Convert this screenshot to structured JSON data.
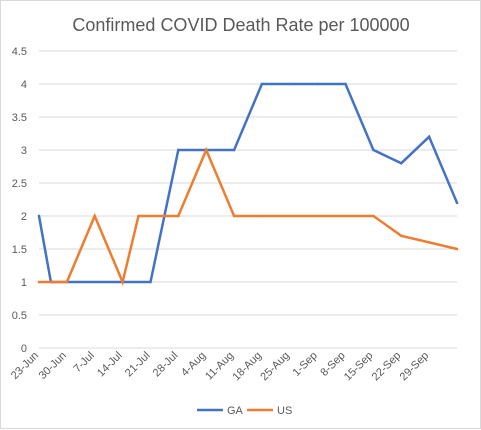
{
  "chart_data": {
    "type": "line",
    "title": "Confirmed COVID Death Rate per 100000",
    "xlabel": "",
    "ylabel": "",
    "categories": [
      "23-Jun",
      "30-Jun",
      "7-Jul",
      "14-Jul",
      "21-Jul",
      "28-Jul",
      "4-Aug",
      "11-Aug",
      "18-Aug",
      "25-Aug",
      "1-Sep",
      "8-Sep",
      "15-Sep",
      "22-Sep",
      "29-Sep"
    ],
    "x": [
      0,
      7,
      14,
      21,
      28,
      35,
      42,
      49,
      56,
      63,
      70,
      77,
      84,
      91,
      98
    ],
    "ylim": [
      0,
      4.5
    ],
    "yticks": [
      "0",
      "0.5",
      "1",
      "1.5",
      "2",
      "2.5",
      "3",
      "3.5",
      "4",
      "4.5"
    ],
    "grid": true,
    "legend_position": "bottom",
    "series": [
      {
        "name": "GA",
        "color": "#4472c4",
        "points": [
          [
            0,
            2
          ],
          [
            3,
            1
          ],
          [
            28,
            1
          ],
          [
            35,
            3
          ],
          [
            42,
            3
          ],
          [
            49,
            3
          ],
          [
            56,
            4
          ],
          [
            63,
            4
          ],
          [
            70,
            4
          ],
          [
            77,
            4
          ],
          [
            84,
            3
          ],
          [
            91,
            2.8
          ],
          [
            98,
            3.2
          ],
          [
            105,
            2.2
          ]
        ]
      },
      {
        "name": "US",
        "color": "#ed7d31",
        "points": [
          [
            0,
            1
          ],
          [
            7,
            1
          ],
          [
            14,
            2
          ],
          [
            21,
            1
          ],
          [
            25,
            2
          ],
          [
            35,
            2
          ],
          [
            42,
            3
          ],
          [
            49,
            2
          ],
          [
            56,
            2
          ],
          [
            63,
            2
          ],
          [
            70,
            2
          ],
          [
            77,
            2
          ],
          [
            84,
            2
          ],
          [
            91,
            1.7
          ],
          [
            98,
            1.6
          ],
          [
            105,
            1.5
          ]
        ]
      }
    ]
  }
}
